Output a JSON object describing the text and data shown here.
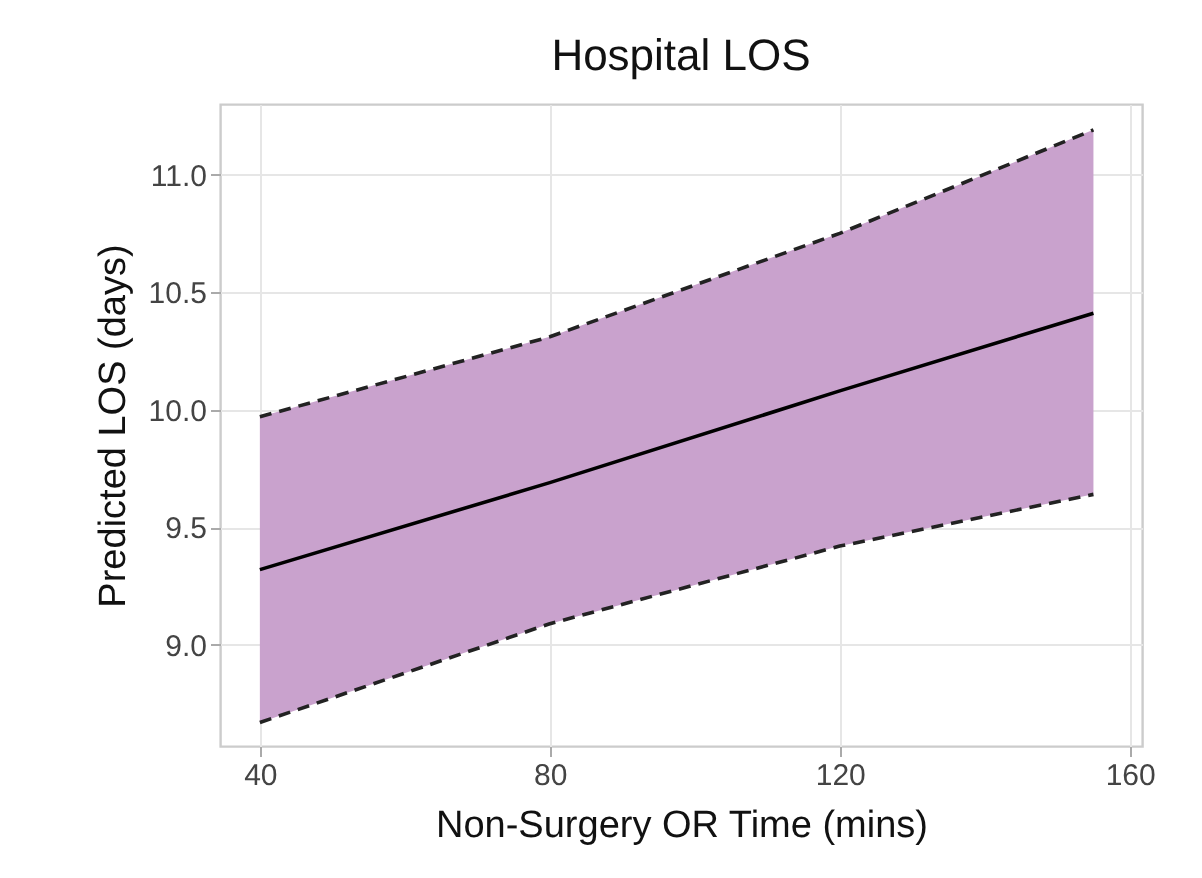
{
  "chart_data": {
    "type": "line",
    "title": "Hospital LOS",
    "xlabel": "Non-Surgery OR Time (mins)",
    "ylabel": "Predicted LOS (days)",
    "x": [
      40,
      80,
      120,
      155
    ],
    "series": [
      {
        "color": "#000000",
        "values": [
          9.32,
          9.69,
          10.08,
          10.41
        ],
        "lower": [
          8.67,
          9.09,
          9.42,
          9.64
        ],
        "upper": [
          9.97,
          10.31,
          10.75,
          11.19
        ]
      },
      {
        "color": "#222222",
        "line_style": "dashed",
        "values": [
          9.97,
          10.31,
          10.75,
          11.19
        ]
      },
      {
        "color": "#222222",
        "line_style": "dashed",
        "values": [
          8.67,
          9.09,
          9.42,
          9.64
        ]
      }
    ],
    "xlim": [
      34.5,
      161.7
    ],
    "ylim": [
      8.57,
      11.3
    ],
    "xticks": [
      40,
      80,
      120,
      160
    ],
    "yticks": [
      {
        "value": 9,
        "label": "9.0"
      },
      {
        "value": 9.5,
        "label": "9.5"
      },
      {
        "value": 10,
        "label": "10.0"
      },
      {
        "value": 10.5,
        "label": "10.5"
      },
      {
        "value": 11,
        "label": "11.0"
      }
    ],
    "grid": true
  }
}
